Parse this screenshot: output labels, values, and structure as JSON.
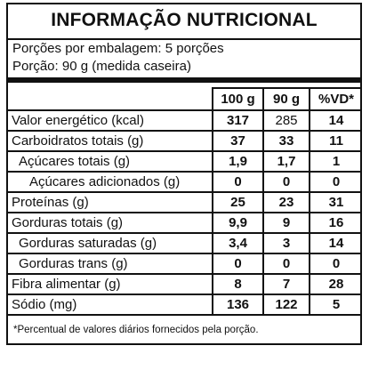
{
  "title": "INFORMAÇÃO NUTRICIONAL",
  "servings_per_package": "Porções por embalagem: 5 porções",
  "serving_size": "Porção: 90 g (medida caseira)",
  "columns": [
    "100 g",
    "90 g",
    "%VD*"
  ],
  "rows": [
    {
      "name": "Valor energético (kcal)",
      "v100": "317",
      "v90": "285",
      "vd": "14"
    },
    {
      "name": "Carboidratos totais (g)",
      "v100": "37",
      "v90": "33",
      "vd": "11"
    },
    {
      "name": "Açúcares totais (g)",
      "v100": "1,9",
      "v90": "1,7",
      "vd": "1"
    },
    {
      "name": "Açúcares adicionados (g)",
      "v100": "0",
      "v90": "0",
      "vd": "0"
    },
    {
      "name": "Proteínas (g)",
      "v100": "25",
      "v90": "23",
      "vd": "31"
    },
    {
      "name": "Gorduras totais (g)",
      "v100": "9,9",
      "v90": "9",
      "vd": "16"
    },
    {
      "name": "Gorduras saturadas (g)",
      "v100": "3,4",
      "v90": "3",
      "vd": "14"
    },
    {
      "name": "Gorduras trans (g)",
      "v100": "0",
      "v90": "0",
      "vd": "0"
    },
    {
      "name": "Fibra alimentar (g)",
      "v100": "8",
      "v90": "7",
      "vd": "28"
    },
    {
      "name": "Sódio (mg)",
      "v100": "136",
      "v90": "122",
      "vd": "5"
    }
  ],
  "footnote": "*Percentual de valores diários fornecidos pela porção."
}
